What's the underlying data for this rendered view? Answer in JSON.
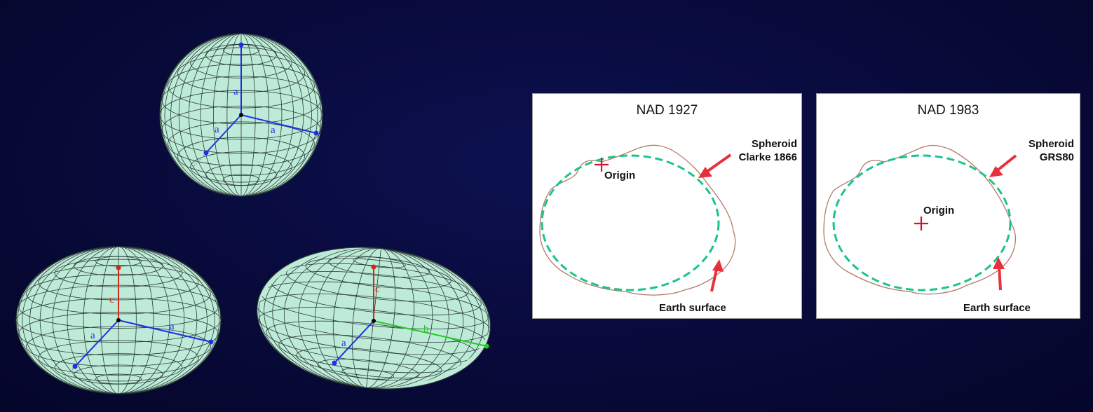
{
  "ellipsoids": {
    "sphere": {
      "axis_labels": [
        "a",
        "a",
        "a"
      ]
    },
    "oblate": {
      "axis_labels": [
        "c",
        "a",
        "a"
      ]
    },
    "triaxial": {
      "axis_labels": [
        "c",
        "a",
        "b"
      ]
    }
  },
  "panels": [
    {
      "title": "NAD 1927",
      "spheroid_label_line1": "Spheroid",
      "spheroid_label_line2": "Clarke 1866",
      "origin_label": "Origin",
      "surface_label": "Earth surface"
    },
    {
      "title": "NAD 1983",
      "spheroid_label_line1": "Spheroid",
      "spheroid_label_line2": "GRS80",
      "origin_label": "Origin",
      "surface_label": "Earth surface"
    }
  ],
  "colors": {
    "background": "#080a3a",
    "ellipsoid_fill": "#bdebd8",
    "grid": "#2a3a34",
    "axis_a": "#1f2fe8",
    "axis_c": "#cc2a1a",
    "axis_b": "#22cc22",
    "spheroid_dash": "#19c48a",
    "earth_outline": "#b47a6a",
    "arrow": "#e8303c",
    "origin_cross": "#d8102a"
  }
}
